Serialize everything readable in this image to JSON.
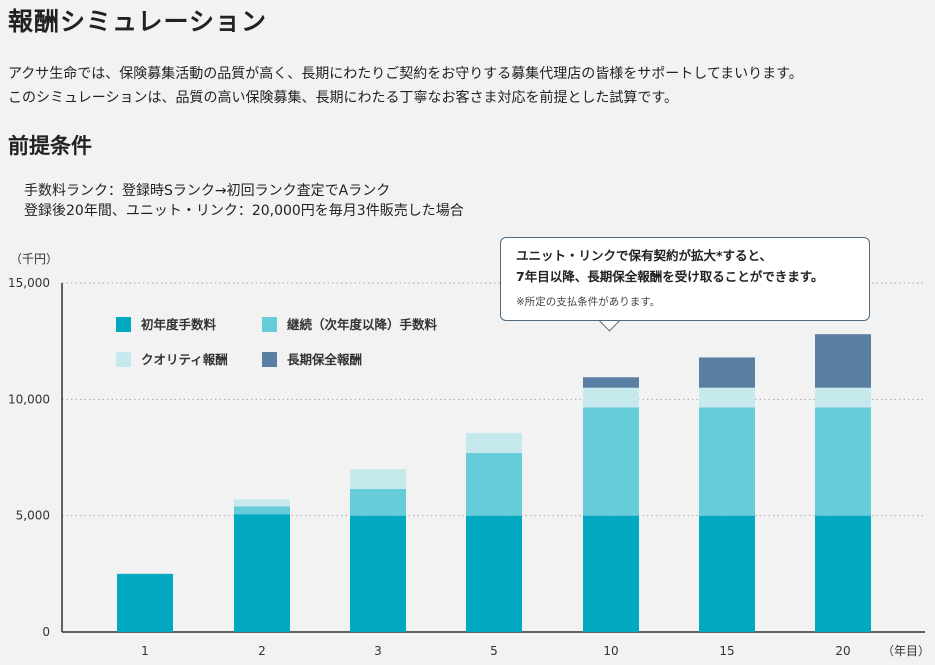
{
  "page": {
    "title": "報酬シミュレーション",
    "intro": [
      "アクサ生命では、保険募集活動の品質が高く、長期にわたりご契約をお守りする募集代理店の皆様をサポートしてまいります。",
      "このシミュレーションは、品質の高い保険募集、長期にわたる丁寧なお客さま対応を前提とした試算です。"
    ],
    "conditions_heading": "前提条件",
    "conditions": [
      "手数料ランク：登録時Sランク→初回ランク査定でAランク",
      "登録後20年間、ユニット・リンク：20,000円を毎月3件販売した場合"
    ]
  },
  "callout": {
    "line1": "ユニット・リンクで保有契約が拡大*すると、",
    "line2": "7年目以降、長期保全報酬を受け取ることができます。",
    "note": "※所定の支払条件があります。"
  },
  "colors": {
    "first_year": "#00a9c0",
    "renewal": "#66ccd9",
    "quality": "#c6e9ee",
    "long_term": "#5a7fa3",
    "axis": "#333333",
    "grid": "#aaaaaa"
  },
  "chart_data": {
    "type": "bar",
    "stacked": true,
    "title": "",
    "ylabel": "（千円）",
    "xlabel": "（年目）",
    "ylim": [
      0,
      15000
    ],
    "yticks": [
      0,
      5000,
      10000,
      15000
    ],
    "ytick_labels": [
      "0",
      "5,000",
      "10,000",
      "15,000"
    ],
    "grid": true,
    "legend_position": "top-left",
    "categories": [
      "1",
      "2",
      "3",
      "5",
      "10",
      "15",
      "20"
    ],
    "series": [
      {
        "name": "初年度手数料",
        "color_key": "first_year",
        "values": [
          2500,
          5050,
          5000,
          5000,
          5000,
          5000,
          5000
        ]
      },
      {
        "name": "継続（次年度以降）手数料",
        "color_key": "renewal",
        "values": [
          0,
          350,
          1150,
          2700,
          4650,
          4650,
          4650
        ]
      },
      {
        "name": "クオリティ報酬",
        "color_key": "quality",
        "values": [
          0,
          300,
          850,
          850,
          850,
          850,
          850
        ]
      },
      {
        "name": "長期保全報酬",
        "color_key": "long_term",
        "values": [
          0,
          0,
          0,
          0,
          450,
          1300,
          2300
        ]
      }
    ]
  }
}
